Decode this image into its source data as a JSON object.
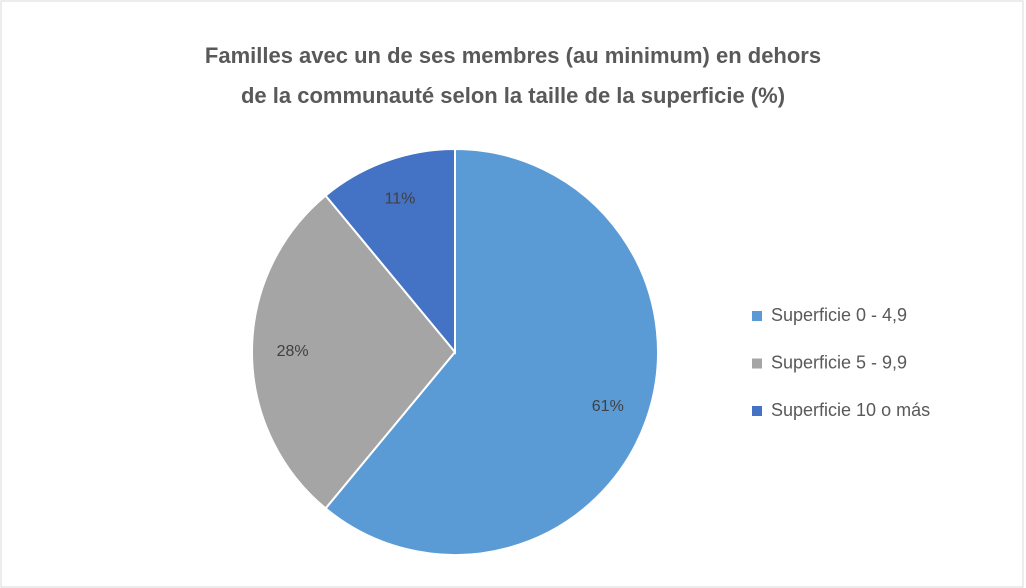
{
  "chart_data": {
    "type": "pie",
    "title": [
      "Familles avec un de ses membres (au minimum) en dehors",
      "de la communauté  selon la taille de la superficie (%)"
    ],
    "categories": [
      "Superficie 0 - 4,9",
      "Superficie 5 - 9,9",
      "Superficie 10 o más"
    ],
    "values": [
      61,
      28,
      11
    ],
    "value_labels": [
      "61%",
      "28%",
      "11%"
    ],
    "colors": [
      "#5b9bd5",
      "#a5a5a5",
      "#4472c4"
    ],
    "legend": "right"
  }
}
